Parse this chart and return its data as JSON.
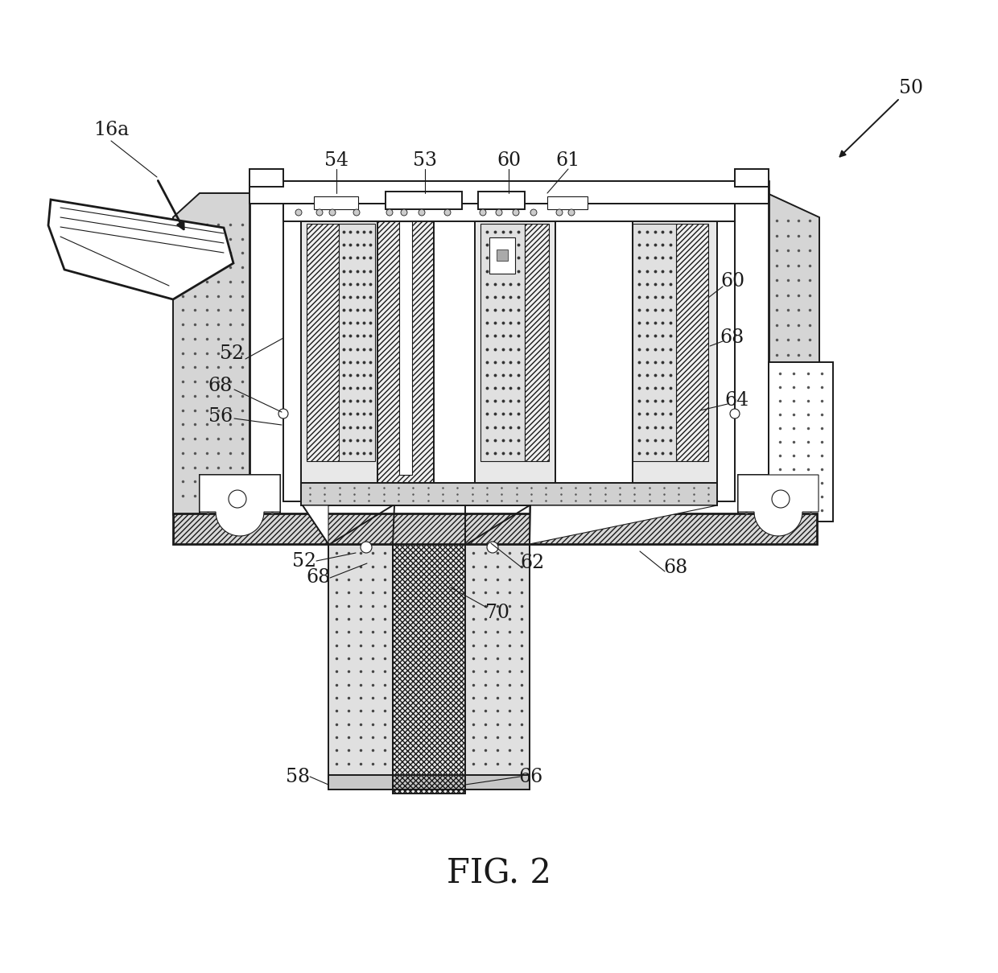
{
  "title": "FIG. 2",
  "title_fontsize": 30,
  "background_color": "#ffffff",
  "line_color": "#1a1a1a",
  "fig_label": "FIG. 2",
  "label_fontsize": 17
}
